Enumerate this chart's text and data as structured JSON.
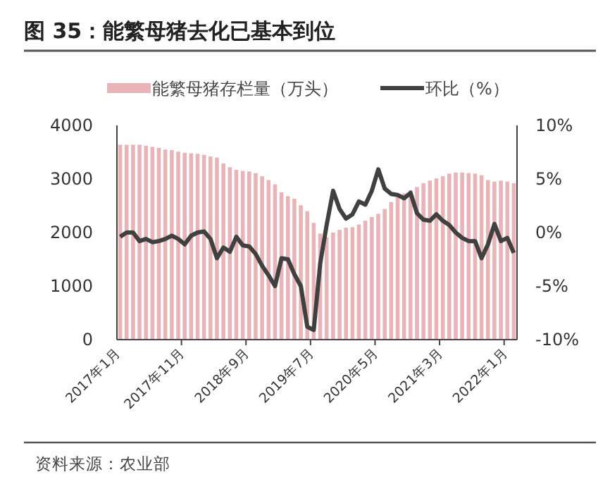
{
  "chart_data": {
    "type": "bar",
    "title": "图 35：能繁母猪去化已基本到位",
    "categories": [
      "2017年1月",
      null,
      null,
      null,
      null,
      null,
      null,
      null,
      null,
      null,
      "2017年11月",
      null,
      null,
      null,
      null,
      null,
      null,
      null,
      null,
      null,
      "2018年9月",
      null,
      null,
      null,
      null,
      null,
      null,
      null,
      null,
      null,
      "2019年7月",
      null,
      null,
      null,
      null,
      null,
      null,
      null,
      null,
      null,
      "2020年5月",
      null,
      null,
      null,
      null,
      null,
      null,
      null,
      null,
      null,
      "2021年3月",
      null,
      null,
      null,
      null,
      null,
      null,
      null,
      null,
      null,
      "2022年1月",
      null
    ],
    "series": [
      {
        "name": "能繁母猪存栏量（万头）",
        "color": "#e8b4b8",
        "values": [
          3640,
          3640,
          3640,
          3640,
          3620,
          3600,
          3580,
          3550,
          3540,
          3510,
          3490,
          3480,
          3470,
          3450,
          3420,
          3400,
          3290,
          3220,
          3170,
          3150,
          3140,
          3110,
          3050,
          2980,
          2900,
          2750,
          2680,
          2630,
          2510,
          2400,
          2180,
          1980,
          1910,
          2000,
          2050,
          2090,
          2100,
          2150,
          2220,
          2290,
          2350,
          2440,
          2570,
          2660,
          2730,
          2790,
          2850,
          2920,
          2970,
          3010,
          3050,
          3100,
          3120,
          3120,
          3110,
          3100,
          3070,
          2980,
          2950,
          2970,
          2950,
          2920
        ]
      },
      {
        "name": "环比（%）",
        "type": "line",
        "axis": "y2",
        "color": "#404040",
        "values": [
          -0.4,
          0,
          0,
          -0.8,
          -0.6,
          -0.9,
          -0.8,
          -0.6,
          -0.3,
          -0.6,
          -1.1,
          -0.3,
          0,
          0.1,
          -0.6,
          -2.4,
          -1.4,
          -1.8,
          -0.4,
          -1.2,
          -1.3,
          -2.0,
          -3.1,
          -4.0,
          -5.0,
          -2.4,
          -2.5,
          -3.9,
          -5.0,
          -8.8,
          -9.1,
          -2.9,
          0.7,
          3.9,
          2.2,
          1.3,
          1.7,
          2.9,
          2.6,
          3.9,
          5.9,
          4.1,
          3.6,
          3.5,
          3.2,
          3.7,
          1.8,
          1.2,
          1.1,
          1.7,
          1.1,
          0.7,
          0,
          -0.5,
          -0.8,
          -0.8,
          -2.4,
          -1.1,
          0.8,
          -0.8,
          -0.5,
          -1.9
        ]
      }
    ],
    "ylim": [
      0,
      4000
    ],
    "yticks": [
      0,
      1000,
      2000,
      3000,
      4000
    ],
    "y2lim": [
      -10,
      10
    ],
    "y2ticks": [
      {
        "value": -10,
        "label": "-10%"
      },
      {
        "value": -5,
        "label": "-5%"
      },
      {
        "value": 0,
        "label": "0%"
      },
      {
        "value": 5,
        "label": "5%"
      },
      {
        "value": 10,
        "label": "10%"
      }
    ],
    "grid": false,
    "legend": "top",
    "marker": "none",
    "line_style": "solid",
    "annotations": [
      "资料来源：农业部"
    ]
  }
}
